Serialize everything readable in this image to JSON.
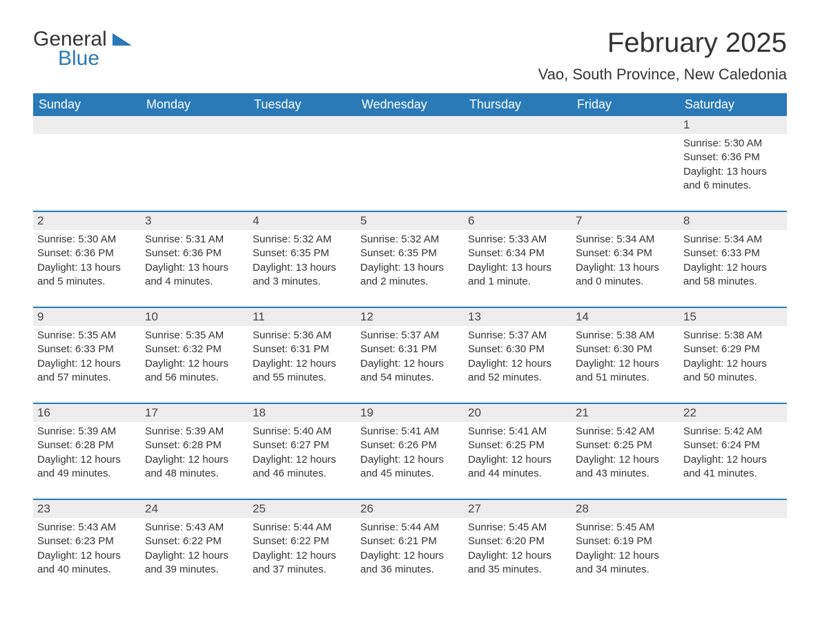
{
  "logo": {
    "text1": "General",
    "text2": "Blue"
  },
  "title": "February 2025",
  "location": "Vao, South Province, New Caledonia",
  "colors": {
    "header_bg": "#2a7ab8",
    "header_text": "#ffffff",
    "daynum_bg": "#ededed",
    "body_text": "#333333",
    "border": "#2a7ab8",
    "page_bg": "#ffffff"
  },
  "weekdays": [
    "Sunday",
    "Monday",
    "Tuesday",
    "Wednesday",
    "Thursday",
    "Friday",
    "Saturday"
  ],
  "weeks": [
    [
      {
        "day": "",
        "sunrise": "",
        "sunset": "",
        "daylight": ""
      },
      {
        "day": "",
        "sunrise": "",
        "sunset": "",
        "daylight": ""
      },
      {
        "day": "",
        "sunrise": "",
        "sunset": "",
        "daylight": ""
      },
      {
        "day": "",
        "sunrise": "",
        "sunset": "",
        "daylight": ""
      },
      {
        "day": "",
        "sunrise": "",
        "sunset": "",
        "daylight": ""
      },
      {
        "day": "",
        "sunrise": "",
        "sunset": "",
        "daylight": ""
      },
      {
        "day": "1",
        "sunrise": "Sunrise: 5:30 AM",
        "sunset": "Sunset: 6:36 PM",
        "daylight": "Daylight: 13 hours and 6 minutes."
      }
    ],
    [
      {
        "day": "2",
        "sunrise": "Sunrise: 5:30 AM",
        "sunset": "Sunset: 6:36 PM",
        "daylight": "Daylight: 13 hours and 5 minutes."
      },
      {
        "day": "3",
        "sunrise": "Sunrise: 5:31 AM",
        "sunset": "Sunset: 6:36 PM",
        "daylight": "Daylight: 13 hours and 4 minutes."
      },
      {
        "day": "4",
        "sunrise": "Sunrise: 5:32 AM",
        "sunset": "Sunset: 6:35 PM",
        "daylight": "Daylight: 13 hours and 3 minutes."
      },
      {
        "day": "5",
        "sunrise": "Sunrise: 5:32 AM",
        "sunset": "Sunset: 6:35 PM",
        "daylight": "Daylight: 13 hours and 2 minutes."
      },
      {
        "day": "6",
        "sunrise": "Sunrise: 5:33 AM",
        "sunset": "Sunset: 6:34 PM",
        "daylight": "Daylight: 13 hours and 1 minute."
      },
      {
        "day": "7",
        "sunrise": "Sunrise: 5:34 AM",
        "sunset": "Sunset: 6:34 PM",
        "daylight": "Daylight: 13 hours and 0 minutes."
      },
      {
        "day": "8",
        "sunrise": "Sunrise: 5:34 AM",
        "sunset": "Sunset: 6:33 PM",
        "daylight": "Daylight: 12 hours and 58 minutes."
      }
    ],
    [
      {
        "day": "9",
        "sunrise": "Sunrise: 5:35 AM",
        "sunset": "Sunset: 6:33 PM",
        "daylight": "Daylight: 12 hours and 57 minutes."
      },
      {
        "day": "10",
        "sunrise": "Sunrise: 5:35 AM",
        "sunset": "Sunset: 6:32 PM",
        "daylight": "Daylight: 12 hours and 56 minutes."
      },
      {
        "day": "11",
        "sunrise": "Sunrise: 5:36 AM",
        "sunset": "Sunset: 6:31 PM",
        "daylight": "Daylight: 12 hours and 55 minutes."
      },
      {
        "day": "12",
        "sunrise": "Sunrise: 5:37 AM",
        "sunset": "Sunset: 6:31 PM",
        "daylight": "Daylight: 12 hours and 54 minutes."
      },
      {
        "day": "13",
        "sunrise": "Sunrise: 5:37 AM",
        "sunset": "Sunset: 6:30 PM",
        "daylight": "Daylight: 12 hours and 52 minutes."
      },
      {
        "day": "14",
        "sunrise": "Sunrise: 5:38 AM",
        "sunset": "Sunset: 6:30 PM",
        "daylight": "Daylight: 12 hours and 51 minutes."
      },
      {
        "day": "15",
        "sunrise": "Sunrise: 5:38 AM",
        "sunset": "Sunset: 6:29 PM",
        "daylight": "Daylight: 12 hours and 50 minutes."
      }
    ],
    [
      {
        "day": "16",
        "sunrise": "Sunrise: 5:39 AM",
        "sunset": "Sunset: 6:28 PM",
        "daylight": "Daylight: 12 hours and 49 minutes."
      },
      {
        "day": "17",
        "sunrise": "Sunrise: 5:39 AM",
        "sunset": "Sunset: 6:28 PM",
        "daylight": "Daylight: 12 hours and 48 minutes."
      },
      {
        "day": "18",
        "sunrise": "Sunrise: 5:40 AM",
        "sunset": "Sunset: 6:27 PM",
        "daylight": "Daylight: 12 hours and 46 minutes."
      },
      {
        "day": "19",
        "sunrise": "Sunrise: 5:41 AM",
        "sunset": "Sunset: 6:26 PM",
        "daylight": "Daylight: 12 hours and 45 minutes."
      },
      {
        "day": "20",
        "sunrise": "Sunrise: 5:41 AM",
        "sunset": "Sunset: 6:25 PM",
        "daylight": "Daylight: 12 hours and 44 minutes."
      },
      {
        "day": "21",
        "sunrise": "Sunrise: 5:42 AM",
        "sunset": "Sunset: 6:25 PM",
        "daylight": "Daylight: 12 hours and 43 minutes."
      },
      {
        "day": "22",
        "sunrise": "Sunrise: 5:42 AM",
        "sunset": "Sunset: 6:24 PM",
        "daylight": "Daylight: 12 hours and 41 minutes."
      }
    ],
    [
      {
        "day": "23",
        "sunrise": "Sunrise: 5:43 AM",
        "sunset": "Sunset: 6:23 PM",
        "daylight": "Daylight: 12 hours and 40 minutes."
      },
      {
        "day": "24",
        "sunrise": "Sunrise: 5:43 AM",
        "sunset": "Sunset: 6:22 PM",
        "daylight": "Daylight: 12 hours and 39 minutes."
      },
      {
        "day": "25",
        "sunrise": "Sunrise: 5:44 AM",
        "sunset": "Sunset: 6:22 PM",
        "daylight": "Daylight: 12 hours and 37 minutes."
      },
      {
        "day": "26",
        "sunrise": "Sunrise: 5:44 AM",
        "sunset": "Sunset: 6:21 PM",
        "daylight": "Daylight: 12 hours and 36 minutes."
      },
      {
        "day": "27",
        "sunrise": "Sunrise: 5:45 AM",
        "sunset": "Sunset: 6:20 PM",
        "daylight": "Daylight: 12 hours and 35 minutes."
      },
      {
        "day": "28",
        "sunrise": "Sunrise: 5:45 AM",
        "sunset": "Sunset: 6:19 PM",
        "daylight": "Daylight: 12 hours and 34 minutes."
      },
      {
        "day": "",
        "sunrise": "",
        "sunset": "",
        "daylight": ""
      }
    ]
  ]
}
